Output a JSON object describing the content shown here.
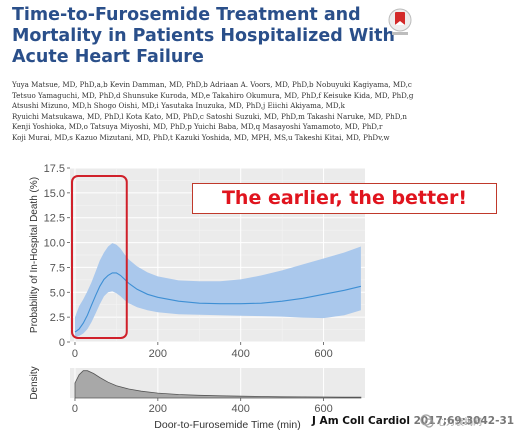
{
  "title_lines": [
    "Time-to-Furosemide Treatment and",
    "Mortality in Patients Hospitalized With",
    "Acute Heart Failure"
  ],
  "authors": [
    "Yuya Matsue, MD, PhD,a,b Kevin Damman, MD, PhD,b Adriaan A. Voors, MD, PhD,b Nobuyuki Kagiyama, MD,c",
    "Tetsuo Yamaguchi, MD, PhD,d Shunsuke Kuroda, MD,e Takahiro Okumura, MD, PhD,f Keisuke Kida, MD, PhD,g",
    "Atsushi Mizuno, MD,h Shogo Oishi, MD,i Yasutaka Inuzuka, MD, PhD,j Eiichi Akiyama, MD,k",
    "Ryuichi Matsukawa, MD, PhD,l Kota Kato, MD, PhD,c Satoshi Suzuki, MD, PhD,m Takashi Naruke, MD, PhD,n",
    "Kenji Yoshioka, MD,o Tatsuya Miyoshi, MD, PhD,p Yuichi Baba, MD,q Masayoshi Yamamoto, MD, PhD,r",
    "Koji Murai, MD,s Kazuo Mizutani, MD, PhD,t Kazuki Yoshida, MD, MPH, MS,u Takeshi Kitai, MD, PhDv,w"
  ],
  "callout": "The earlier, the better!",
  "journal": {
    "name": "J Am Coll Cardiol",
    "rest": "2017;69:3042-31"
  },
  "watermark": "心力衰竭网",
  "colors": {
    "title": "#2a4f8a",
    "band": "#aac8ec",
    "line": "#3e8fd4",
    "density_fill": "#a8a8a8",
    "highlight_box": "#d0202a",
    "callout_text": "#e0141e"
  },
  "chart_data": [
    {
      "type": "line",
      "ylabel": "Probability of In-Hospital Death (%)",
      "xlim": [
        -12,
        700
      ],
      "ylim": [
        0,
        17.5
      ],
      "xticks": [
        0,
        200,
        400,
        600
      ],
      "yticks": [
        0,
        2.5,
        5.0,
        7.5,
        10.0,
        12.5,
        15.0,
        17.5
      ],
      "ytick_labels": [
        "0",
        "2.5",
        "5.0",
        "7.5",
        "10.0",
        "12.5",
        "15.0",
        "17.5"
      ],
      "series": [
        {
          "x": [
            0,
            10,
            20,
            30,
            40,
            50,
            60,
            70,
            80,
            90,
            100,
            110,
            120,
            130,
            150,
            175,
            200,
            250,
            300,
            350,
            400,
            450,
            500,
            550,
            600,
            650,
            690
          ],
          "y": [
            1.0,
            1.3,
            1.9,
            2.7,
            3.7,
            4.7,
            5.6,
            6.3,
            6.7,
            6.95,
            6.95,
            6.7,
            6.3,
            5.9,
            5.3,
            4.8,
            4.5,
            4.1,
            3.9,
            3.85,
            3.85,
            3.9,
            4.1,
            4.4,
            4.8,
            5.2,
            5.6
          ],
          "lower": [
            0.5,
            0.6,
            0.85,
            1.3,
            2.0,
            2.9,
            3.8,
            4.6,
            5.0,
            5.1,
            4.9,
            4.6,
            4.2,
            3.9,
            3.5,
            3.2,
            3.0,
            2.8,
            2.75,
            2.7,
            2.65,
            2.6,
            2.55,
            2.45,
            2.4,
            2.7,
            3.2
          ]
        }
      ],
      "upper": [
        2.5,
        3.6,
        4.3,
        5.1,
        6.0,
        7.1,
        8.2,
        9.0,
        9.6,
        9.95,
        9.8,
        9.4,
        8.8,
        8.3,
        7.6,
        7.0,
        6.6,
        6.2,
        6.1,
        6.1,
        6.3,
        6.7,
        7.2,
        7.8,
        8.4,
        9.0,
        9.6
      ],
      "highlight_x": [
        -12,
        125
      ]
    },
    {
      "type": "area",
      "xlabel": "Door-to-Furosemide Time (min)",
      "ylabel": "Density",
      "xlim": [
        -12,
        700
      ],
      "xticks": [
        0,
        200,
        400,
        600
      ],
      "x": [
        0,
        10,
        20,
        30,
        45,
        60,
        80,
        100,
        130,
        160,
        200,
        250,
        300,
        350,
        400,
        450,
        500,
        550,
        600,
        650,
        690
      ],
      "y": [
        0.55,
        0.85,
        1.0,
        1.0,
        0.9,
        0.75,
        0.58,
        0.45,
        0.33,
        0.25,
        0.18,
        0.13,
        0.1,
        0.08,
        0.065,
        0.055,
        0.045,
        0.04,
        0.035,
        0.03,
        0.03
      ]
    }
  ]
}
